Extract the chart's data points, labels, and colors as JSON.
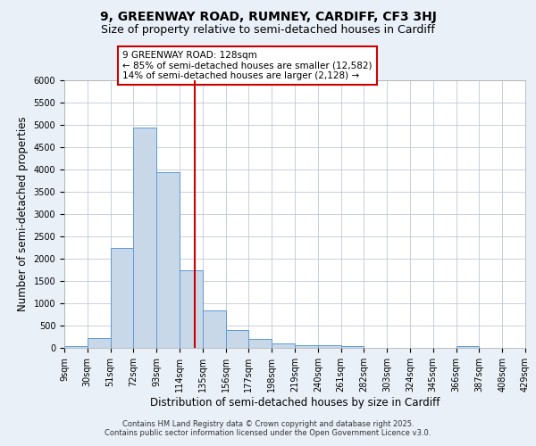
{
  "title_line1": "9, GREENWAY ROAD, RUMNEY, CARDIFF, CF3 3HJ",
  "title_line2": "Size of property relative to semi-detached houses in Cardiff",
  "xlabel": "Distribution of semi-detached houses by size in Cardiff",
  "ylabel": "Number of semi-detached properties",
  "bin_edges": [
    9,
    30,
    51,
    72,
    93,
    114,
    135,
    156,
    177,
    198,
    219,
    240,
    261,
    282,
    303,
    324,
    345,
    366,
    387,
    408,
    429
  ],
  "bar_heights": [
    50,
    230,
    2250,
    4950,
    3950,
    1750,
    850,
    400,
    200,
    100,
    65,
    55,
    40,
    0,
    0,
    0,
    0,
    40,
    0,
    0
  ],
  "bar_color": "#c8d8e8",
  "bar_edge_color": "#5b9bd5",
  "property_size": 128,
  "vline_color": "#cc0000",
  "annotation_text": "9 GREENWAY ROAD: 128sqm\n← 85% of semi-detached houses are smaller (12,582)\n14% of semi-detached houses are larger (2,128) →",
  "annotation_box_color": "#ffffff",
  "annotation_border_color": "#cc0000",
  "ylim": [
    0,
    6000
  ],
  "yticks": [
    0,
    500,
    1000,
    1500,
    2000,
    2500,
    3000,
    3500,
    4000,
    4500,
    5000,
    5500,
    6000
  ],
  "bg_color": "#eaf0f8",
  "plot_bg_color": "#ffffff",
  "footer_text": "Contains HM Land Registry data © Crown copyright and database right 2025.\nContains public sector information licensed under the Open Government Licence v3.0.",
  "title_fontsize": 10,
  "subtitle_fontsize": 9,
  "tick_label_fontsize": 7,
  "axis_label_fontsize": 8.5,
  "footer_fontsize": 6.0
}
